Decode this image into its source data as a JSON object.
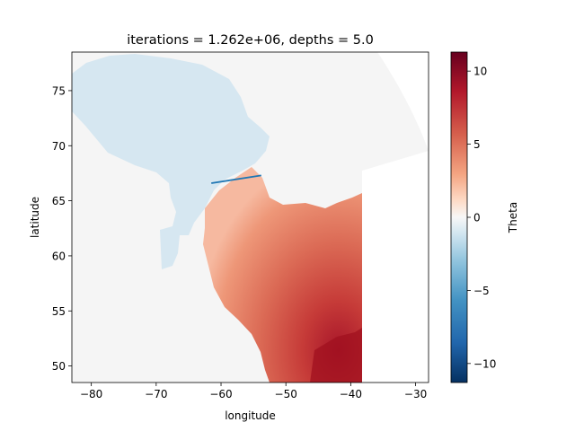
{
  "chart_data": {
    "type": "heatmap",
    "title": "iterations = 1.262e+06, depths = 5.0",
    "xlabel": "longitude",
    "ylabel": "latitude",
    "xlim": [
      -83,
      -28
    ],
    "ylim": [
      48.5,
      78.5
    ],
    "x_ticks": [
      -80,
      -70,
      -60,
      -50,
      -40,
      -30
    ],
    "x_tick_labels": [
      "−80",
      "−70",
      "−60",
      "−50",
      "−40",
      "−30"
    ],
    "y_ticks": [
      50,
      55,
      60,
      65,
      70,
      75
    ],
    "y_tick_labels": [
      "50",
      "55",
      "60",
      "65",
      "70",
      "75"
    ],
    "colorbar": {
      "label": "Theta",
      "colormap": "RdBu_r",
      "range": [
        -11.3,
        11.3
      ],
      "ticks": [
        -10,
        -5,
        0,
        5,
        10
      ],
      "tick_labels": [
        "−10",
        "−5",
        "0",
        "5",
        "10"
      ]
    },
    "section_line": {
      "color": "#1f77b4",
      "points": [
        [
          -61.5,
          66.6
        ],
        [
          -53.8,
          67.3
        ]
      ]
    },
    "fields": {
      "land_color": "#f5f5f5",
      "ice_shelf_color": "#d6e7f1",
      "warm_core_color": "#a0101f"
    }
  }
}
